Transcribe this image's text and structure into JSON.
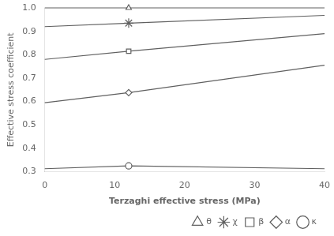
{
  "chart_data": {
    "type": "line",
    "xlabel": "Terzaghi effective stress (MPa)",
    "ylabel": "Effective stress coefficient",
    "xlim": [
      0,
      40
    ],
    "ylim": [
      0.3,
      1.0
    ],
    "xticks": [
      0,
      10,
      20,
      30,
      40
    ],
    "yticks": [
      0.3,
      0.4,
      0.5,
      0.6,
      0.7,
      0.8,
      0.9,
      {
        "value": 1.0,
        "label": "1.0"
      }
    ],
    "grid": false,
    "legend": "lower right",
    "series": [
      {
        "name": "θ",
        "color": "#606060",
        "marker": "triangle",
        "x": [
          0,
          12,
          40
        ],
        "values": [
          1.0,
          1.0,
          1.0
        ],
        "marker_x": [
          12
        ]
      },
      {
        "name": "χ",
        "color": "#606060",
        "marker": "star",
        "x": [
          0,
          12,
          40
        ],
        "values": [
          0.92,
          0.935,
          0.968
        ],
        "marker_x": [
          12
        ]
      },
      {
        "name": "β",
        "color": "#606060",
        "marker": "square",
        "x": [
          0,
          12,
          40
        ],
        "values": [
          0.78,
          0.815,
          0.89
        ],
        "marker_x": [
          12
        ]
      },
      {
        "name": "α",
        "color": "#606060",
        "marker": "diamond",
        "x": [
          0,
          12,
          40
        ],
        "values": [
          0.595,
          0.638,
          0.755
        ],
        "marker_x": [
          12
        ]
      },
      {
        "name": "κ",
        "color": "#606060",
        "marker": "circle",
        "x": [
          0,
          12,
          40
        ],
        "values": [
          0.313,
          0.325,
          0.313
        ],
        "marker_x": [
          12
        ]
      }
    ]
  }
}
